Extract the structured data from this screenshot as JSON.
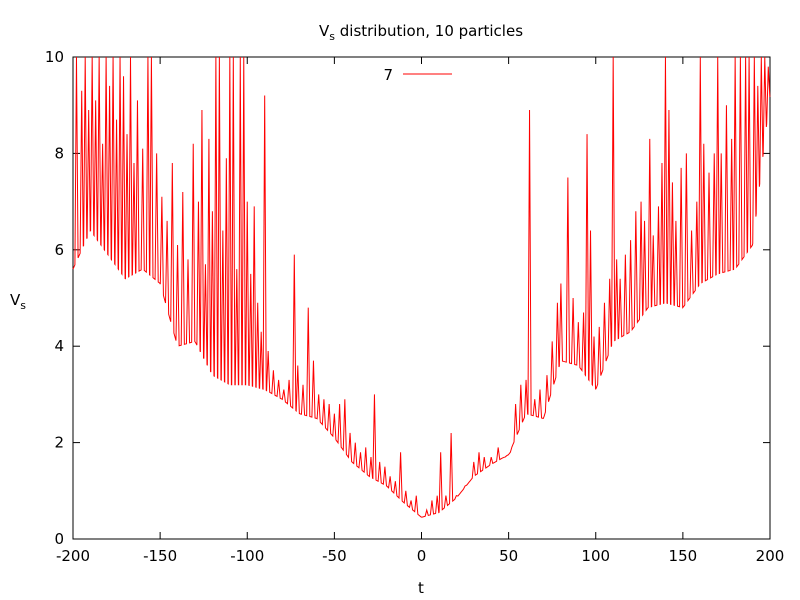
{
  "chart_data": {
    "type": "line",
    "title_main": "V",
    "title_sub": "s",
    "title_rest": " distribution, 10 particles",
    "xlabel": "t",
    "ylabel_main": "V",
    "ylabel_sub": "s",
    "xlim": [
      -200,
      200
    ],
    "ylim": [
      0,
      10
    ],
    "x_ticks": [
      -200,
      -150,
      -100,
      -50,
      0,
      50,
      100,
      150,
      200
    ],
    "y_ticks": [
      0,
      2,
      4,
      6,
      8,
      10
    ],
    "x_tick_labels": [
      "-200",
      "-150",
      "-100",
      "-50",
      "0",
      "50",
      "100",
      "150",
      "200"
    ],
    "y_tick_labels": [
      "0",
      "2",
      "4",
      "6",
      "8",
      "10"
    ],
    "legend_position": "top-center",
    "grid": false,
    "series": [
      {
        "name": "7",
        "color": "#ff0000",
        "baseline": [
          [
            -200,
            5.6
          ],
          [
            -190,
            6.4
          ],
          [
            -180,
            5.9
          ],
          [
            -170,
            5.4
          ],
          [
            -160,
            5.6
          ],
          [
            -150,
            5.3
          ],
          [
            -140,
            4.0
          ],
          [
            -130,
            4.1
          ],
          [
            -120,
            3.4
          ],
          [
            -110,
            3.2
          ],
          [
            -100,
            3.2
          ],
          [
            -90,
            3.1
          ],
          [
            -80,
            2.9
          ],
          [
            -70,
            2.6
          ],
          [
            -60,
            2.5
          ],
          [
            -50,
            2.1
          ],
          [
            -40,
            1.6
          ],
          [
            -30,
            1.3
          ],
          [
            -20,
            1.1
          ],
          [
            -10,
            0.75
          ],
          [
            0,
            0.45
          ],
          [
            10,
            0.55
          ],
          [
            20,
            0.85
          ],
          [
            30,
            1.3
          ],
          [
            40,
            1.55
          ],
          [
            50,
            1.75
          ],
          [
            60,
            2.6
          ],
          [
            70,
            2.5
          ],
          [
            80,
            3.7
          ],
          [
            90,
            3.6
          ],
          [
            100,
            3.1
          ],
          [
            110,
            4.1
          ],
          [
            120,
            4.3
          ],
          [
            130,
            4.8
          ],
          [
            140,
            4.9
          ],
          [
            150,
            4.8
          ],
          [
            160,
            5.3
          ],
          [
            170,
            5.5
          ],
          [
            180,
            5.6
          ],
          [
            190,
            6.1
          ],
          [
            200,
            9.2
          ]
        ],
        "spikes": [
          [
            -198,
            10
          ],
          [
            -195,
            9.3
          ],
          [
            -193,
            10
          ],
          [
            -191,
            8.9
          ],
          [
            -189,
            10
          ],
          [
            -187,
            9.1
          ],
          [
            -185,
            10
          ],
          [
            -183,
            8.2
          ],
          [
            -181,
            10
          ],
          [
            -179,
            9.4
          ],
          [
            -177,
            10
          ],
          [
            -175,
            8.7
          ],
          [
            -173,
            10
          ],
          [
            -171,
            9.6
          ],
          [
            -169,
            8.4
          ],
          [
            -167,
            10
          ],
          [
            -165,
            7.8
          ],
          [
            -163,
            9.1
          ],
          [
            -160,
            8.1
          ],
          [
            -157,
            10
          ],
          [
            -155,
            10
          ],
          [
            -152,
            8.0
          ],
          [
            -149,
            7.1
          ],
          [
            -146,
            6.6
          ],
          [
            -143,
            7.8
          ],
          [
            -140,
            6.1
          ],
          [
            -137,
            7.2
          ],
          [
            -134,
            5.8
          ],
          [
            -131,
            8.2
          ],
          [
            -128,
            7.0
          ],
          [
            -126,
            8.9
          ],
          [
            -124,
            5.7
          ],
          [
            -122,
            8.3
          ],
          [
            -120,
            6.8
          ],
          [
            -118,
            10
          ],
          [
            -116,
            10
          ],
          [
            -114,
            6.4
          ],
          [
            -112,
            7.9
          ],
          [
            -110,
            10
          ],
          [
            -108,
            10
          ],
          [
            -106,
            5.6
          ],
          [
            -104,
            10
          ],
          [
            -102,
            10
          ],
          [
            -100,
            7.0
          ],
          [
            -98,
            5.5
          ],
          [
            -96,
            6.9
          ],
          [
            -94,
            4.9
          ],
          [
            -92,
            4.3
          ],
          [
            -90,
            9.2
          ],
          [
            -88,
            3.9
          ],
          [
            -85,
            3.5
          ],
          [
            -82,
            3.3
          ],
          [
            -79,
            3.1
          ],
          [
            -76,
            3.3
          ],
          [
            -73,
            5.9
          ],
          [
            -71,
            3.6
          ],
          [
            -68,
            3.2
          ],
          [
            -65,
            4.8
          ],
          [
            -62,
            3.7
          ],
          [
            -59,
            3.0
          ],
          [
            -56,
            2.9
          ],
          [
            -53,
            2.8
          ],
          [
            -50,
            2.6
          ],
          [
            -47,
            2.8
          ],
          [
            -44,
            2.9
          ],
          [
            -41,
            2.2
          ],
          [
            -38,
            2.0
          ],
          [
            -35,
            1.8
          ],
          [
            -32,
            1.9
          ],
          [
            -29,
            1.7
          ],
          [
            -27,
            3.0
          ],
          [
            -24,
            1.6
          ],
          [
            -21,
            1.5
          ],
          [
            -18,
            1.3
          ],
          [
            -15,
            1.2
          ],
          [
            -12,
            1.8
          ],
          [
            -9,
            1.0
          ],
          [
            -6,
            0.8
          ],
          [
            -3,
            0.9
          ],
          [
            3,
            0.6
          ],
          [
            6,
            0.8
          ],
          [
            9,
            0.9
          ],
          [
            11,
            1.8
          ],
          [
            14,
            0.9
          ],
          [
            17,
            2.2
          ],
          [
            20,
            0.9
          ],
          [
            25,
            1.1
          ],
          [
            30,
            1.6
          ],
          [
            33,
            1.8
          ],
          [
            36,
            1.7
          ],
          [
            40,
            1.7
          ],
          [
            44,
            1.9
          ],
          [
            48,
            1.7
          ],
          [
            51,
            1.8
          ],
          [
            54,
            2.8
          ],
          [
            57,
            3.2
          ],
          [
            60,
            3.3
          ],
          [
            62,
            8.9
          ],
          [
            65,
            2.9
          ],
          [
            68,
            3.1
          ],
          [
            72,
            3.4
          ],
          [
            75,
            4.1
          ],
          [
            78,
            4.9
          ],
          [
            80,
            5.3
          ],
          [
            84,
            7.5
          ],
          [
            87,
            5.0
          ],
          [
            90,
            4.5
          ],
          [
            93,
            4.7
          ],
          [
            95,
            8.4
          ],
          [
            97,
            6.4
          ],
          [
            99,
            4.2
          ],
          [
            102,
            4.4
          ],
          [
            105,
            4.9
          ],
          [
            108,
            5.4
          ],
          [
            110,
            10
          ],
          [
            112,
            5.8
          ],
          [
            114,
            5.4
          ],
          [
            117,
            5.9
          ],
          [
            120,
            6.2
          ],
          [
            123,
            6.8
          ],
          [
            126,
            7.0
          ],
          [
            128,
            6.6
          ],
          [
            131,
            8.3
          ],
          [
            133,
            6.3
          ],
          [
            136,
            6.9
          ],
          [
            138,
            7.8
          ],
          [
            140,
            10
          ],
          [
            142,
            8.9
          ],
          [
            144,
            7.4
          ],
          [
            146,
            6.6
          ],
          [
            149,
            7.7
          ],
          [
            152,
            8.0
          ],
          [
            155,
            6.4
          ],
          [
            158,
            7.0
          ],
          [
            160,
            10
          ],
          [
            162,
            8.2
          ],
          [
            165,
            7.6
          ],
          [
            168,
            8.0
          ],
          [
            170,
            10
          ],
          [
            172,
            8.0
          ],
          [
            175,
            9.0
          ],
          [
            178,
            8.3
          ],
          [
            180,
            10
          ],
          [
            183,
            10
          ],
          [
            186,
            10
          ],
          [
            188,
            10
          ],
          [
            191,
            10
          ],
          [
            193,
            9.4
          ],
          [
            195,
            10
          ],
          [
            197,
            10
          ],
          [
            199,
            9.8
          ]
        ]
      }
    ]
  }
}
